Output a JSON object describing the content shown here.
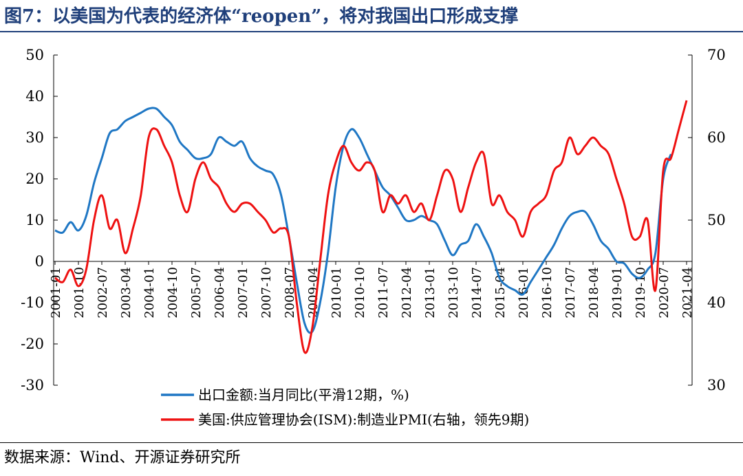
{
  "title": "图7：以美国为代表的经济体“reopen”，将对我国出口形成支撑",
  "source": "数据来源：Wind、开源证券研究所",
  "chart_data": {
    "type": "line",
    "x_ticks": [
      "2001-01",
      "2001-10",
      "2002-07",
      "2003-04",
      "2004-01",
      "2004-10",
      "2005-07",
      "2006-04",
      "2007-01",
      "2007-10",
      "2008-07",
      "2009-04",
      "2010-01",
      "2010-10",
      "2011-07",
      "2012-04",
      "2013-01",
      "2013-10",
      "2014-07",
      "2015-04",
      "2016-01",
      "2016-10",
      "2017-07",
      "2018-04",
      "2019-01",
      "2019-10",
      "2020-07",
      "2021-04"
    ],
    "y_left": {
      "min": -30,
      "max": 50,
      "ticks": [
        -30,
        -20,
        -10,
        0,
        10,
        20,
        30,
        40,
        50
      ]
    },
    "y_right": {
      "min": 30,
      "max": 70,
      "ticks": [
        30,
        40,
        50,
        60,
        70
      ]
    },
    "series": [
      {
        "name": "出口金额:当月同比(平滑12期，%)",
        "color": "#1f77c4",
        "axis": "left",
        "points": [
          [
            "2001-01",
            7.5
          ],
          [
            "2001-04",
            7.0
          ],
          [
            "2001-07",
            9.5
          ],
          [
            "2001-10",
            7.5
          ],
          [
            "2002-01",
            11
          ],
          [
            "2002-04",
            19
          ],
          [
            "2002-07",
            25
          ],
          [
            "2002-10",
            31
          ],
          [
            "2003-01",
            32
          ],
          [
            "2003-04",
            34
          ],
          [
            "2003-07",
            35
          ],
          [
            "2003-10",
            36
          ],
          [
            "2004-01",
            37
          ],
          [
            "2004-04",
            37
          ],
          [
            "2004-07",
            35
          ],
          [
            "2004-10",
            33
          ],
          [
            "2005-01",
            29
          ],
          [
            "2005-04",
            27
          ],
          [
            "2005-07",
            25
          ],
          [
            "2005-10",
            25
          ],
          [
            "2006-01",
            26
          ],
          [
            "2006-04",
            30
          ],
          [
            "2006-07",
            29
          ],
          [
            "2006-10",
            28
          ],
          [
            "2007-01",
            29
          ],
          [
            "2007-04",
            25
          ],
          [
            "2007-07",
            23
          ],
          [
            "2007-10",
            22
          ],
          [
            "2008-01",
            21
          ],
          [
            "2008-04",
            16
          ],
          [
            "2008-07",
            6
          ],
          [
            "2008-10",
            -5
          ],
          [
            "2009-01",
            -15
          ],
          [
            "2009-04",
            -17
          ],
          [
            "2009-07",
            -10
          ],
          [
            "2009-10",
            2
          ],
          [
            "2010-01",
            18
          ],
          [
            "2010-04",
            28
          ],
          [
            "2010-07",
            32
          ],
          [
            "2010-10",
            30
          ],
          [
            "2011-01",
            26
          ],
          [
            "2011-04",
            22
          ],
          [
            "2011-07",
            18
          ],
          [
            "2011-10",
            16
          ],
          [
            "2012-01",
            13
          ],
          [
            "2012-04",
            10
          ],
          [
            "2012-07",
            10
          ],
          [
            "2012-10",
            11
          ],
          [
            "2013-01",
            10
          ],
          [
            "2013-04",
            9
          ],
          [
            "2013-07",
            5
          ],
          [
            "2013-10",
            1.5
          ],
          [
            "2014-01",
            4
          ],
          [
            "2014-04",
            5
          ],
          [
            "2014-07",
            9
          ],
          [
            "2014-10",
            6
          ],
          [
            "2015-01",
            2
          ],
          [
            "2015-04",
            -4
          ],
          [
            "2015-07",
            -6
          ],
          [
            "2015-10",
            -7
          ],
          [
            "2016-01",
            -8
          ],
          [
            "2016-04",
            -5
          ],
          [
            "2016-07",
            -2
          ],
          [
            "2016-10",
            1
          ],
          [
            "2017-01",
            4
          ],
          [
            "2017-04",
            8
          ],
          [
            "2017-07",
            11
          ],
          [
            "2017-10",
            12
          ],
          [
            "2018-01",
            12
          ],
          [
            "2018-04",
            9
          ],
          [
            "2018-07",
            5
          ],
          [
            "2018-10",
            3
          ],
          [
            "2019-01",
            0
          ],
          [
            "2019-04",
            -0.5
          ],
          [
            "2019-07",
            -3
          ],
          [
            "2019-10",
            -4
          ],
          [
            "2020-01",
            -2
          ],
          [
            "2020-04",
            2
          ],
          [
            "2020-07",
            20
          ],
          [
            "2020-10",
            26
          ]
        ]
      },
      {
        "name": "美国:供应管理协会(ISM):制造业PMI(右轴，领先9期)",
        "color": "#ee1111",
        "axis": "right",
        "points": [
          [
            "2001-01",
            43
          ],
          [
            "2001-04",
            42.5
          ],
          [
            "2001-07",
            44
          ],
          [
            "2001-10",
            42
          ],
          [
            "2002-01",
            44
          ],
          [
            "2002-04",
            50
          ],
          [
            "2002-07",
            53
          ],
          [
            "2002-10",
            49
          ],
          [
            "2003-01",
            50
          ],
          [
            "2003-04",
            46
          ],
          [
            "2003-07",
            49
          ],
          [
            "2003-10",
            53
          ],
          [
            "2004-01",
            60
          ],
          [
            "2004-04",
            61
          ],
          [
            "2004-07",
            59
          ],
          [
            "2004-10",
            57
          ],
          [
            "2005-01",
            53
          ],
          [
            "2005-04",
            51
          ],
          [
            "2005-07",
            55
          ],
          [
            "2005-10",
            57
          ],
          [
            "2006-01",
            55
          ],
          [
            "2006-04",
            54
          ],
          [
            "2006-07",
            52
          ],
          [
            "2006-10",
            51
          ],
          [
            "2007-01",
            52
          ],
          [
            "2007-04",
            52
          ],
          [
            "2007-07",
            51
          ],
          [
            "2007-10",
            50
          ],
          [
            "2008-01",
            48.5
          ],
          [
            "2008-04",
            49
          ],
          [
            "2008-07",
            48
          ],
          [
            "2008-10",
            40
          ],
          [
            "2009-01",
            34
          ],
          [
            "2009-04",
            37
          ],
          [
            "2009-07",
            45
          ],
          [
            "2009-10",
            53
          ],
          [
            "2010-01",
            57
          ],
          [
            "2010-04",
            59
          ],
          [
            "2010-07",
            57
          ],
          [
            "2010-10",
            56
          ],
          [
            "2011-01",
            57
          ],
          [
            "2011-04",
            56
          ],
          [
            "2011-07",
            51
          ],
          [
            "2011-10",
            53
          ],
          [
            "2012-01",
            52
          ],
          [
            "2012-04",
            53
          ],
          [
            "2012-07",
            51
          ],
          [
            "2012-10",
            52
          ],
          [
            "2013-01",
            50
          ],
          [
            "2013-04",
            53
          ],
          [
            "2013-07",
            56
          ],
          [
            "2013-10",
            55
          ],
          [
            "2014-01",
            51
          ],
          [
            "2014-04",
            54
          ],
          [
            "2014-07",
            57
          ],
          [
            "2014-10",
            58
          ],
          [
            "2015-01",
            52
          ],
          [
            "2015-04",
            53
          ],
          [
            "2015-07",
            51
          ],
          [
            "2015-10",
            50
          ],
          [
            "2016-01",
            48
          ],
          [
            "2016-04",
            51
          ],
          [
            "2016-07",
            52
          ],
          [
            "2016-10",
            53
          ],
          [
            "2017-01",
            56
          ],
          [
            "2017-04",
            57
          ],
          [
            "2017-07",
            60
          ],
          [
            "2017-10",
            58
          ],
          [
            "2018-01",
            59
          ],
          [
            "2018-04",
            60
          ],
          [
            "2018-07",
            59
          ],
          [
            "2018-10",
            58
          ],
          [
            "2019-01",
            55
          ],
          [
            "2019-04",
            52
          ],
          [
            "2019-07",
            48
          ],
          [
            "2019-10",
            48
          ],
          [
            "2020-01",
            50
          ],
          [
            "2020-04",
            41.5
          ],
          [
            "2020-07",
            56
          ],
          [
            "2020-10",
            57.5
          ],
          [
            "2021-01",
            61
          ],
          [
            "2021-04",
            64.5
          ]
        ]
      }
    ]
  }
}
